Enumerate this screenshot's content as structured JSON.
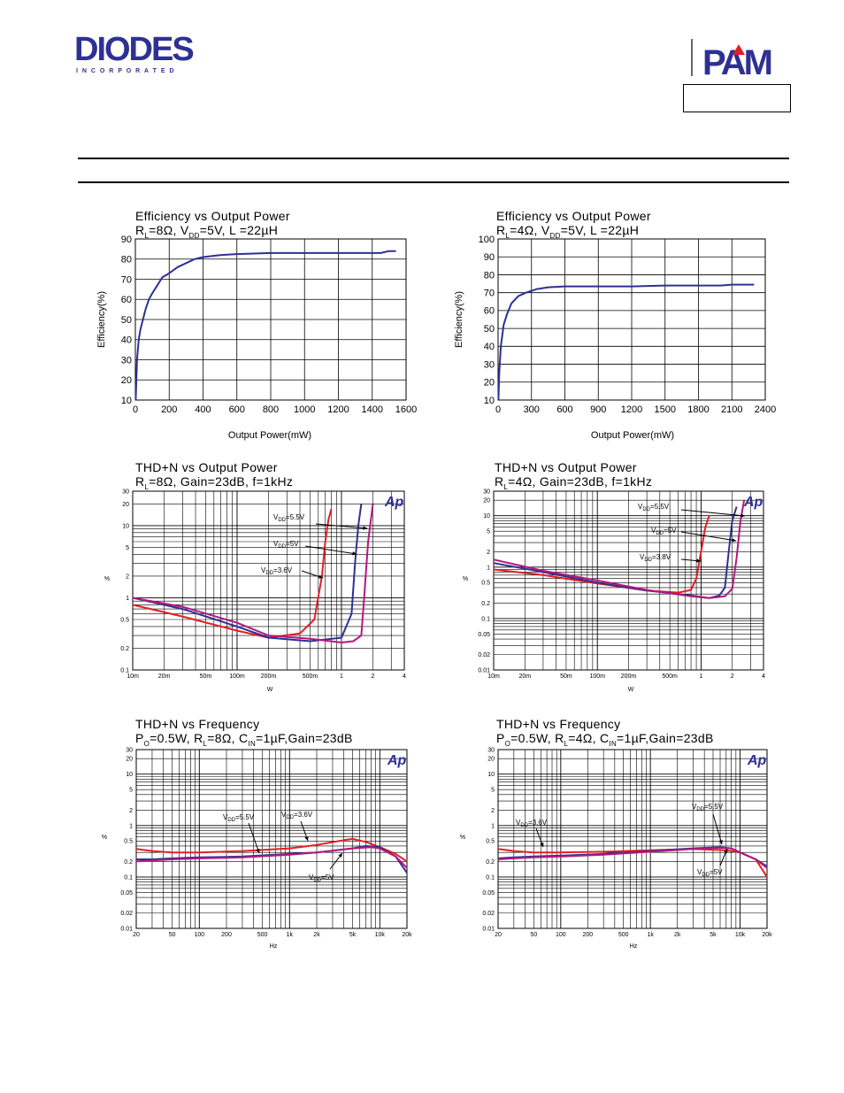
{
  "header": {
    "diodes_logo_text": "DIODES",
    "diodes_logo_sub": "I N C O R P O R A T E D",
    "pam_logo_text": "PAM"
  },
  "chart_data": [
    {
      "id": "eff8",
      "type": "line",
      "title": "Efficiency vs Output Power",
      "subtitle": "R<sub>L</sub>=8Ω, V<sub>DD</sub>=5V, L =22µH",
      "xlabel": "Output Power(mW)",
      "ylabel": "Efficiency(%)",
      "xlim": [
        0,
        1600
      ],
      "ylim": [
        10,
        90
      ],
      "xscale": "linear",
      "yscale": "linear",
      "xticks": [
        0,
        200,
        400,
        600,
        800,
        1000,
        1200,
        1400,
        1600
      ],
      "xtick_labels": [
        "0",
        "200",
        "400",
        "600",
        "800",
        "1000",
        "1200",
        "1400",
        "1600"
      ],
      "yticks": [
        10,
        20,
        30,
        40,
        50,
        60,
        70,
        80,
        90
      ],
      "ytick_labels": [
        "10",
        "20",
        "30",
        "40",
        "50",
        "60",
        "70",
        "80",
        "90"
      ],
      "grid": true,
      "series": [
        {
          "color": "#2e3192",
          "x": [
            2,
            5,
            10,
            20,
            30,
            45,
            60,
            80,
            100,
            130,
            160,
            200,
            250,
            300,
            350,
            400,
            500,
            600,
            800,
            1000,
            1200,
            1400,
            1450,
            1500,
            1540
          ],
          "y": [
            10,
            18,
            30,
            40,
            45,
            50,
            55,
            60,
            63,
            67,
            71,
            73,
            76,
            78,
            80,
            81,
            82,
            82.5,
            83,
            83,
            83,
            83,
            83,
            84,
            84
          ]
        }
      ]
    },
    {
      "id": "eff4",
      "type": "line",
      "title": "Efficiency vs Output Power",
      "subtitle": "R<sub>L</sub>=4Ω, V<sub>DD</sub>=5V, L =22µH",
      "xlabel": "Output Power(mW)",
      "ylabel": "Efficiency(%)",
      "xlim": [
        0,
        2400
      ],
      "ylim": [
        10,
        100
      ],
      "xscale": "linear",
      "yscale": "linear",
      "xticks": [
        0,
        300,
        600,
        900,
        1200,
        1500,
        1800,
        2100,
        2400
      ],
      "xtick_labels": [
        "0",
        "300",
        "600",
        "900",
        "1200",
        "1500",
        "1800",
        "2100",
        "2400"
      ],
      "yticks": [
        10,
        20,
        30,
        40,
        50,
        60,
        70,
        80,
        90,
        100
      ],
      "ytick_labels": [
        "10",
        "20",
        "30",
        "40",
        "50",
        "60",
        "70",
        "80",
        "90",
        "100"
      ],
      "grid": true,
      "series": [
        {
          "color": "#2e3192",
          "x": [
            3,
            10,
            25,
            50,
            80,
            120,
            180,
            250,
            350,
            450,
            600,
            900,
            1200,
            1500,
            1800,
            2000,
            2100,
            2300
          ],
          "y": [
            10,
            25,
            40,
            52,
            58,
            64,
            68,
            70,
            72,
            73,
            73.5,
            73.5,
            73.5,
            74,
            74,
            74,
            74.5,
            74.5
          ]
        }
      ]
    },
    {
      "id": "thd8",
      "type": "line",
      "title": "THD+N vs Output Power",
      "subtitle": "R<sub>L</sub>=8Ω, Gain=23dB, f=1kHz",
      "xlabel": "W",
      "ylabel": "%",
      "xlim": [
        0.01,
        4
      ],
      "ylim": [
        0.1,
        30
      ],
      "xscale": "log",
      "yscale": "log",
      "xticks": [
        0.01,
        0.02,
        0.05,
        0.1,
        0.2,
        0.5,
        1,
        2,
        4
      ],
      "xtick_labels": [
        "10m",
        "20m",
        "50m",
        "100m",
        "200m",
        "500m",
        "1",
        "2",
        "4"
      ],
      "yticks": [
        0.1,
        0.2,
        0.5,
        1,
        2,
        5,
        10,
        20,
        30
      ],
      "ytick_labels": [
        "0.1",
        "0.2",
        "0.5",
        "1",
        "2",
        "5",
        "10",
        "20",
        "30"
      ],
      "grid": true,
      "logo": "Ap",
      "annotations": [
        {
          "text": "V<tspan font-size='6' dy='2'>DD</tspan><tspan dy='-2'>=5.5V</tspan>"
        },
        {
          "text": "V<tspan font-size='6' dy='2'>DD</tspan><tspan dy='-2'>=5V</tspan>"
        },
        {
          "text": "V<tspan font-size='6' dy='2'>DD</tspan><tspan dy='-2'>=3.6V</tspan>"
        }
      ],
      "series": [
        {
          "color": "#e31e24",
          "x": [
            0.01,
            0.03,
            0.1,
            0.2,
            0.4,
            0.55,
            0.65,
            0.7,
            0.75,
            0.8
          ],
          "y": [
            0.8,
            0.55,
            0.35,
            0.28,
            0.32,
            0.5,
            2,
            6,
            12,
            17
          ]
        },
        {
          "color": "#2e3192",
          "x": [
            0.01,
            0.03,
            0.1,
            0.2,
            0.5,
            1.0,
            1.25,
            1.35,
            1.45,
            1.55
          ],
          "y": [
            1.0,
            0.7,
            0.4,
            0.28,
            0.25,
            0.28,
            0.6,
            3,
            10,
            20
          ]
        },
        {
          "color": "#b5177e",
          "x": [
            0.01,
            0.03,
            0.1,
            0.2,
            0.5,
            1.0,
            1.3,
            1.55,
            1.65,
            1.8,
            2.0
          ],
          "y": [
            1.0,
            0.75,
            0.45,
            0.3,
            0.27,
            0.24,
            0.25,
            0.3,
            1,
            6,
            20
          ]
        }
      ]
    },
    {
      "id": "thd4",
      "type": "line",
      "title": "THD+N vs Output Power",
      "subtitle": "R<sub>L</sub>=4Ω, Gain=23dB, f=1kHz",
      "xlabel": "W",
      "ylabel": "%",
      "xlim": [
        0.01,
        4
      ],
      "ylim": [
        0.01,
        30
      ],
      "xscale": "log",
      "yscale": "log",
      "xticks": [
        0.01,
        0.02,
        0.05,
        0.1,
        0.2,
        0.5,
        1,
        2,
        4
      ],
      "xtick_labels": [
        "10m",
        "20m",
        "50m",
        "100m",
        "200m",
        "500m",
        "1",
        "2",
        "4"
      ],
      "yticks": [
        0.01,
        0.02,
        0.05,
        0.1,
        0.2,
        0.5,
        1,
        2,
        5,
        10,
        20,
        30
      ],
      "ytick_labels": [
        "0.01",
        "0.02",
        "0.05",
        "0.1",
        "0.2",
        "0.5",
        "1",
        "2",
        "5",
        "10",
        "20",
        "30"
      ],
      "grid": true,
      "logo": "Ap",
      "annotations": [
        {
          "text": "V<tspan font-size='6' dy='2'>DD</tspan><tspan dy='-2'>=5.5V</tspan>"
        },
        {
          "text": "V<tspan font-size='6' dy='2'>DD</tspan><tspan dy='-2'>=5V</tspan>"
        },
        {
          "text": "V<tspan font-size='6' dy='2'>DD</tspan><tspan dy='-2'>=3.8V</tspan>"
        }
      ],
      "series": [
        {
          "color": "#e31e24",
          "x": [
            0.01,
            0.03,
            0.1,
            0.3,
            0.6,
            0.8,
            0.9,
            1.0,
            1.1,
            1.2
          ],
          "y": [
            0.9,
            0.7,
            0.48,
            0.35,
            0.32,
            0.36,
            0.6,
            2,
            6,
            10
          ]
        },
        {
          "color": "#2e3192",
          "x": [
            0.01,
            0.03,
            0.1,
            0.3,
            0.8,
            1.2,
            1.5,
            1.7,
            1.85,
            2.0,
            2.2
          ],
          "y": [
            1.2,
            0.8,
            0.5,
            0.35,
            0.28,
            0.25,
            0.28,
            0.4,
            2,
            8,
            15
          ]
        },
        {
          "color": "#b5177e",
          "x": [
            0.01,
            0.03,
            0.1,
            0.3,
            0.8,
            1.2,
            1.7,
            2.0,
            2.2,
            2.4,
            2.6
          ],
          "y": [
            1.4,
            0.85,
            0.55,
            0.36,
            0.27,
            0.25,
            0.27,
            0.38,
            1.5,
            8,
            20
          ]
        }
      ]
    },
    {
      "id": "thdf8",
      "type": "line",
      "title": "THD+N vs Frequency",
      "subtitle": "P<sub>O</sub>=0.5W, R<sub>L</sub>=8Ω, C<sub>IN</sub>=1µF,Gain=23dB",
      "xlabel": "Hz",
      "ylabel": "%",
      "xlim": [
        20,
        20000
      ],
      "ylim": [
        0.01,
        30
      ],
      "xscale": "log",
      "yscale": "log",
      "xticks": [
        20,
        50,
        100,
        200,
        500,
        1000,
        2000,
        5000,
        10000,
        20000
      ],
      "xtick_labels": [
        "20",
        "50",
        "100",
        "200",
        "500",
        "1k",
        "2k",
        "5k",
        "10k",
        "20k"
      ],
      "yticks": [
        0.01,
        0.02,
        0.05,
        0.1,
        0.2,
        0.5,
        1,
        2,
        5,
        10,
        20,
        30
      ],
      "ytick_labels": [
        "0.01",
        "0.02",
        "0.05",
        "0.1",
        "0.2",
        "0.5",
        "1",
        "2",
        "5",
        "10",
        "20",
        "30"
      ],
      "grid": true,
      "logo": "Ap",
      "annotations": [
        {
          "text": "V<tspan font-size='6' dy='2'>DD</tspan><tspan dy='-2'>=5.5V</tspan>"
        },
        {
          "text": "V<tspan font-size='6' dy='2'>DD</tspan><tspan dy='-2'>=3.6V</tspan>"
        },
        {
          "text": "V<tspan font-size='6' dy='2'>DD</tspan><tspan dy='-2'>=5V</tspan>"
        }
      ],
      "series": [
        {
          "color": "#e31e24",
          "x": [
            20,
            30,
            50,
            100,
            300,
            1000,
            2000,
            4000,
            5000,
            7000,
            10000,
            15000,
            20000
          ],
          "y": [
            0.35,
            0.32,
            0.3,
            0.3,
            0.32,
            0.36,
            0.42,
            0.52,
            0.55,
            0.48,
            0.38,
            0.28,
            0.2
          ]
        },
        {
          "color": "#2e3192",
          "x": [
            20,
            30,
            50,
            100,
            300,
            1000,
            2000,
            5000,
            7000,
            10000,
            15000,
            20000
          ],
          "y": [
            0.22,
            0.22,
            0.23,
            0.24,
            0.25,
            0.28,
            0.3,
            0.36,
            0.4,
            0.38,
            0.25,
            0.12
          ]
        },
        {
          "color": "#b5177e",
          "x": [
            20,
            30,
            50,
            100,
            300,
            1000,
            2000,
            5000,
            8000,
            10000,
            15000,
            20000
          ],
          "y": [
            0.2,
            0.21,
            0.22,
            0.23,
            0.24,
            0.27,
            0.3,
            0.36,
            0.38,
            0.36,
            0.25,
            0.15
          ]
        }
      ]
    },
    {
      "id": "thdf4",
      "type": "line",
      "title": "THD+N vs Frequency",
      "subtitle": "P<sub>O</sub>=0.5W, R<sub>L</sub>=4Ω, C<sub>IN</sub>=1µF,Gain=23dB",
      "xlabel": "Hz",
      "ylabel": "%",
      "xlim": [
        20,
        20000
      ],
      "ylim": [
        0.01,
        30
      ],
      "xscale": "log",
      "yscale": "log",
      "xticks": [
        20,
        50,
        100,
        200,
        500,
        1000,
        2000,
        5000,
        10000,
        20000
      ],
      "xtick_labels": [
        "20",
        "50",
        "100",
        "200",
        "500",
        "1k",
        "2k",
        "5k",
        "10k",
        "20k"
      ],
      "yticks": [
        0.01,
        0.02,
        0.05,
        0.1,
        0.2,
        0.5,
        1,
        2,
        5,
        10,
        20,
        30
      ],
      "ytick_labels": [
        "0.01",
        "0.02",
        "0.05",
        "0.1",
        "0.2",
        "0.5",
        "1",
        "2",
        "5",
        "10",
        "20",
        "30"
      ],
      "grid": true,
      "logo": "Ap",
      "annotations": [
        {
          "text": "V<tspan font-size='6' dy='2'>DD</tspan><tspan dy='-2'>=3.6V</tspan>"
        },
        {
          "text": "V<tspan font-size='6' dy='2'>DD</tspan><tspan dy='-2'>=5.5V</tspan>"
        },
        {
          "text": "V<tspan font-size='6' dy='2'>DD</tspan><tspan dy='-2'>=5V</tspan>"
        }
      ],
      "series": [
        {
          "color": "#e31e24",
          "x": [
            20,
            30,
            50,
            100,
            300,
            1000,
            3000,
            7000,
            10000,
            15000,
            20000
          ],
          "y": [
            0.35,
            0.32,
            0.3,
            0.3,
            0.31,
            0.33,
            0.35,
            0.33,
            0.3,
            0.22,
            0.1
          ]
        },
        {
          "color": "#2e3192",
          "x": [
            20,
            30,
            50,
            100,
            300,
            1000,
            3000,
            6000,
            8000,
            10000,
            15000,
            20000
          ],
          "y": [
            0.23,
            0.24,
            0.25,
            0.26,
            0.28,
            0.32,
            0.36,
            0.38,
            0.36,
            0.3,
            0.22,
            0.16
          ]
        },
        {
          "color": "#b5177e",
          "x": [
            20,
            30,
            50,
            100,
            300,
            1000,
            3000,
            6000,
            8000,
            10000,
            15000,
            20000
          ],
          "y": [
            0.22,
            0.23,
            0.24,
            0.25,
            0.27,
            0.31,
            0.35,
            0.37,
            0.36,
            0.3,
            0.22,
            0.15
          ]
        }
      ]
    }
  ]
}
